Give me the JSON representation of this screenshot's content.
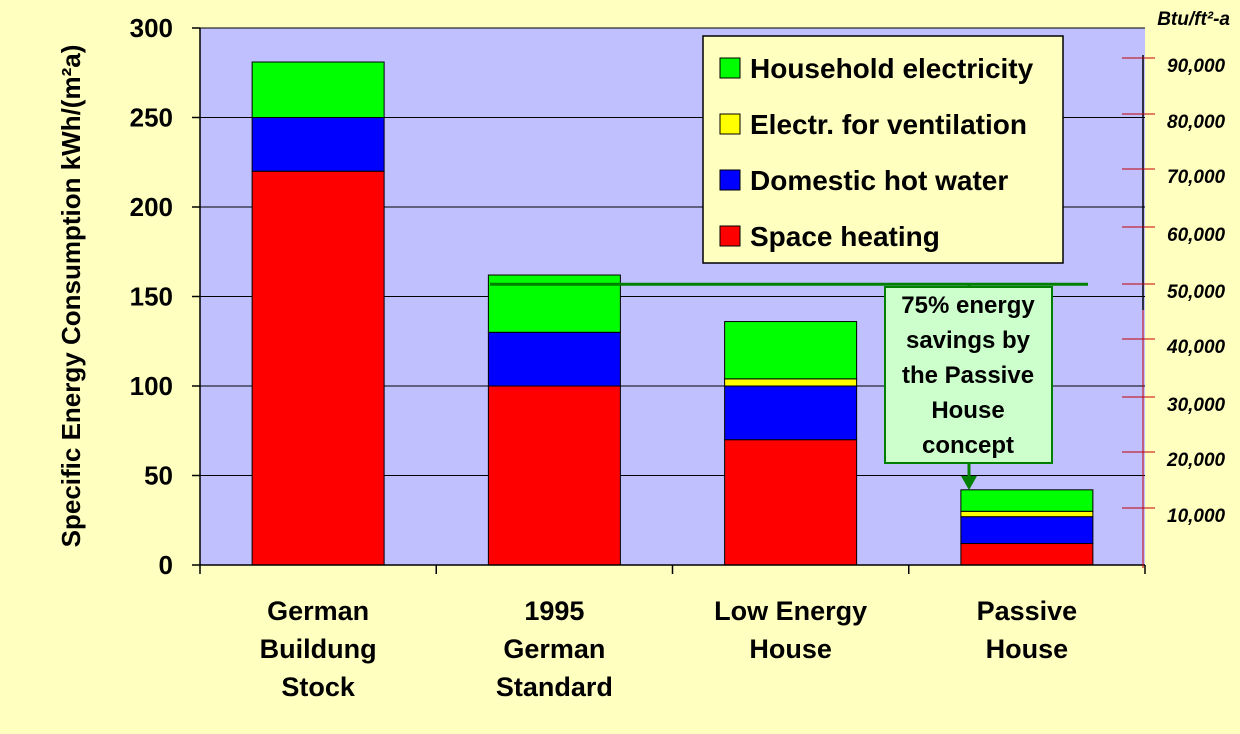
{
  "chart_data": {
    "type": "bar",
    "stacked": true,
    "categories": [
      [
        "German",
        "Buildung",
        "Stock"
      ],
      [
        "1995",
        "German",
        "Standard"
      ],
      [
        "Low Energy",
        "House"
      ],
      [
        "Passive",
        "House"
      ]
    ],
    "series": [
      {
        "name": "Space heating",
        "color": "#ff0000",
        "values": [
          220,
          100,
          70,
          12
        ]
      },
      {
        "name": "Domestic hot water",
        "color": "#0000ff",
        "values": [
          30,
          30,
          30,
          15
        ]
      },
      {
        "name": "Electr. for ventilation",
        "color": "#ffff00",
        "values": [
          0,
          0,
          4,
          3
        ]
      },
      {
        "name": "Household electricity",
        "color": "#00ff00",
        "values": [
          31,
          32,
          32,
          12
        ]
      }
    ],
    "legend_order": [
      "Household electricity",
      "Electr. for ventilation",
      "Domestic hot water",
      "Space heating"
    ],
    "ylabel": "Specific Energy Consumption  kWh/(m²a)",
    "ylim": [
      0,
      300
    ],
    "yticks": [
      "0",
      "50",
      "100",
      "150",
      "200",
      "250",
      "300"
    ],
    "y2label": "Btu/ft²-a",
    "y2ticks": [
      "10,000",
      "20,000",
      "30,000",
      "40,000",
      "50,000",
      "60,000",
      "70,000",
      "80,000",
      "90,000"
    ],
    "grid": true,
    "legend_position": "top-right",
    "annotation": {
      "lines": [
        "75% energy",
        "savings by",
        "the Passive",
        "House",
        "concept"
      ],
      "reference_value": 163
    },
    "colors": {
      "background": "#ffffc0",
      "plot_area": "#c0c0ff",
      "annotation_box": "#ccffcc",
      "annotation_line": "#008000"
    }
  }
}
